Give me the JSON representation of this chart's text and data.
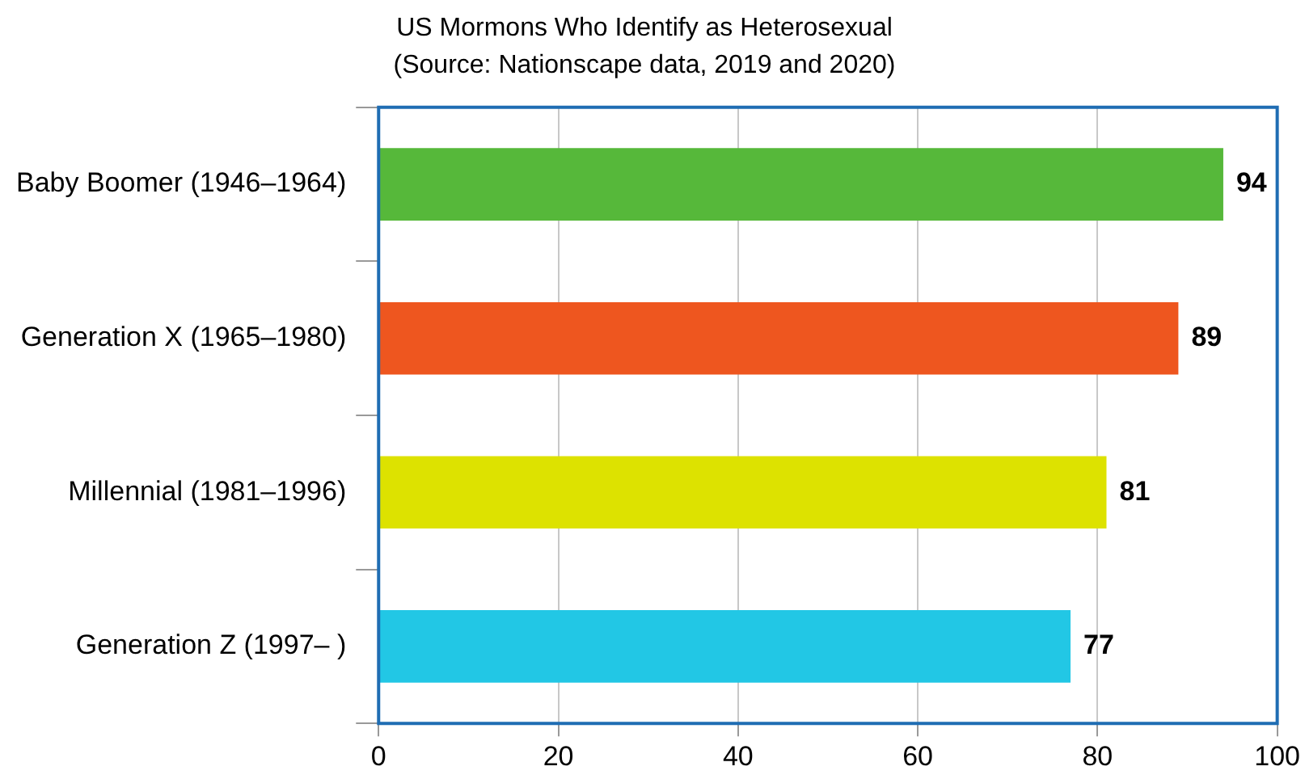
{
  "chart_data": {
    "type": "bar",
    "orientation": "horizontal",
    "title": "US Mormons Who Identify as Heterosexual",
    "subtitle": "(Source: Nationscape data, 2019 and 2020)",
    "categories": [
      "Baby Boomer (1946–1964)",
      "Generation X (1965–1980)",
      "Millennial (1981–1996)",
      "Generation Z (1997– )"
    ],
    "values": [
      94,
      89,
      81,
      77
    ],
    "colors": [
      "#56b83a",
      "#ee561f",
      "#dde200",
      "#22c7e5"
    ],
    "xlim": [
      0,
      100
    ],
    "xticks": [
      0,
      20,
      40,
      60,
      80,
      100
    ],
    "grid": "x",
    "data_labels": true,
    "legend": false
  }
}
